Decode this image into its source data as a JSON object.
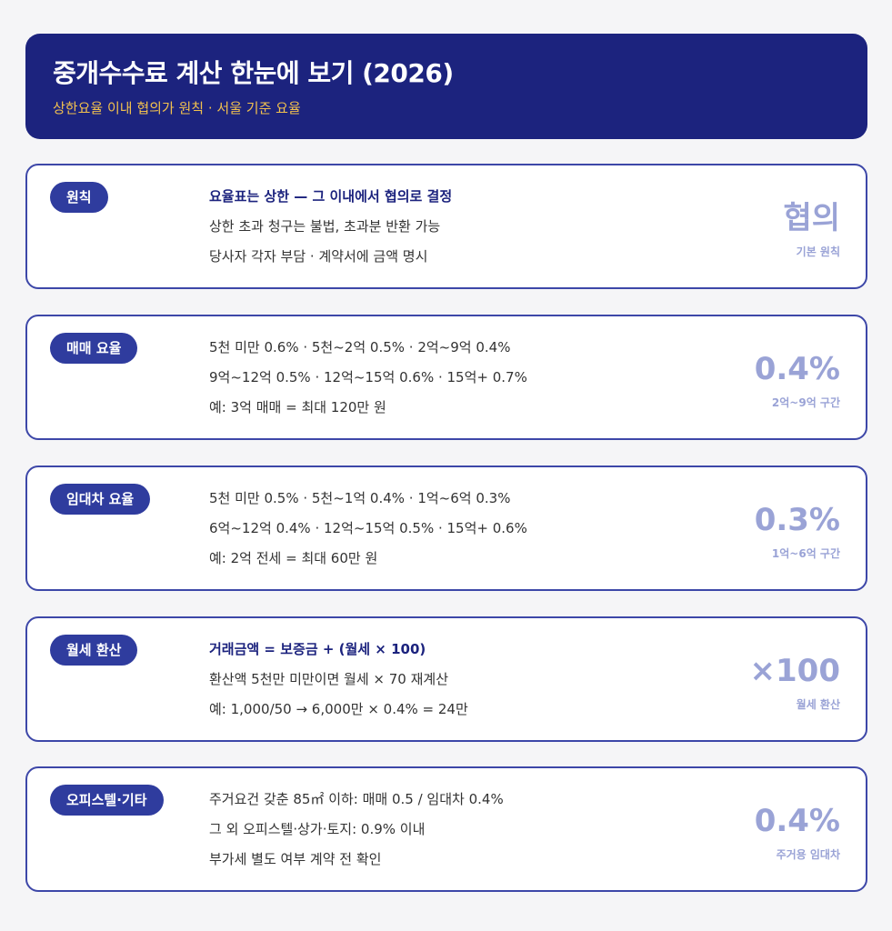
{
  "header": {
    "title": "중개수수료 계산 한눈에 보기 (2026)",
    "subtitle": "상한요율 이내 협의가 원칙 · 서울 기준 요율"
  },
  "cards": [
    {
      "label": "원칙",
      "lines": [
        "요율표는 상한 — 그 이내에서 협의로 결정",
        "상한 초과 청구는 불법, 초과분 반환 가능",
        "당사자 각자 부담 · 계약서에 금액 명시"
      ],
      "big": "협의",
      "caption": "기본 원칙"
    },
    {
      "label": "매매 요율",
      "lines": [
        "5천 미만 0.6% · 5천~2억 0.5% · 2억~9억 0.4%",
        "9억~12억 0.5% · 12억~15억 0.6% · 15억+ 0.7%",
        "예: 3억 매매 = 최대 120만 원"
      ],
      "big": "0.4%",
      "caption": "2억~9억 구간"
    },
    {
      "label": "임대차 요율",
      "lines": [
        "5천 미만 0.5% · 5천~1억 0.4% · 1억~6억 0.3%",
        "6억~12억 0.4% · 12억~15억 0.5% · 15억+ 0.6%",
        "예: 2억 전세 = 최대 60만 원"
      ],
      "big": "0.3%",
      "caption": "1억~6억 구간"
    },
    {
      "label": "월세 환산",
      "lines": [
        "거래금액 = 보증금 + (월세 × 100)",
        "환산액 5천만 미만이면 월세 × 70 재계산",
        "예: 1,000/50 → 6,000만 × 0.4% = 24만"
      ],
      "big": "×100",
      "caption": "월세 환산"
    },
    {
      "label": "오피스텔·기타",
      "lines": [
        "주거요건 갖춘 85㎡ 이하: 매매 0.5 / 임대차 0.4%",
        "그 외 오피스텔·상가·토지: 0.9% 이내",
        "부가세 별도 여부 계약 전 확인"
      ],
      "big": "0.4%",
      "caption": "주거용 임대차"
    }
  ]
}
